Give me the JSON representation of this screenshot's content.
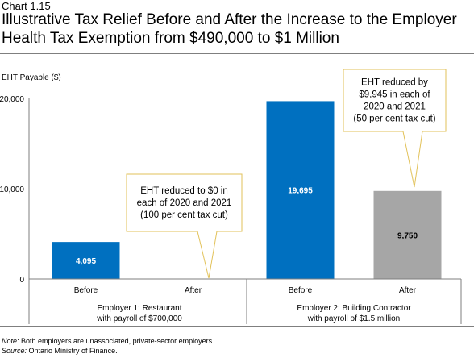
{
  "header": {
    "chart_number": "Chart 1.15",
    "title": "Illustrative Tax Relief Before and After the Increase to the Employer Health Tax Exemption from $490,000 to $1 Million"
  },
  "footer": {
    "note_label": "Note:",
    "note_text": " Both employers are unassociated, private-sector employers.",
    "source_label": "Source:",
    "source_text": " Ontario Ministry of Finance."
  },
  "colors": {
    "blue": "#0070c0",
    "gray": "#a6a6a6",
    "callout_border": "#e2c25a",
    "axis": "#7f7f7f"
  },
  "chart_data": {
    "type": "bar",
    "ylabel": "EHT Payable  ($)",
    "ylim": [
      0,
      20000
    ],
    "yticks": [
      0,
      10000,
      20000
    ],
    "ytick_labels": [
      "0",
      "10,000",
      "20,000"
    ],
    "groups": [
      {
        "label_line1": "Employer 1: Restaurant",
        "label_line2": "with payroll of $700,000"
      },
      {
        "label_line1": "Employer 2: Building Contractor",
        "label_line2": "with payroll of $1.5 million"
      }
    ],
    "bars": [
      {
        "category": "Before",
        "group": 0,
        "value": 4095,
        "label": "4,095",
        "color": "#0070c0",
        "label_color": "#ffffff"
      },
      {
        "category": "After",
        "group": 0,
        "value": 0,
        "label": "",
        "color": "#0070c0",
        "label_color": "#ffffff"
      },
      {
        "category": "Before",
        "group": 1,
        "value": 19695,
        "label": "19,695",
        "color": "#0070c0",
        "label_color": "#ffffff"
      },
      {
        "category": "After",
        "group": 1,
        "value": 9750,
        "label": "9,750",
        "color": "#a6a6a6",
        "label_color": "#000000"
      }
    ],
    "annotations": [
      {
        "target_bar": 1,
        "lines": [
          "EHT reduced to $0 in",
          "each of 2020 and 2021",
          "(100 per cent tax cut)"
        ]
      },
      {
        "target_bar": 3,
        "lines": [
          "EHT reduced by",
          "$9,945 in each of",
          "2020 and 2021",
          "(50 per cent tax cut)"
        ]
      }
    ]
  }
}
